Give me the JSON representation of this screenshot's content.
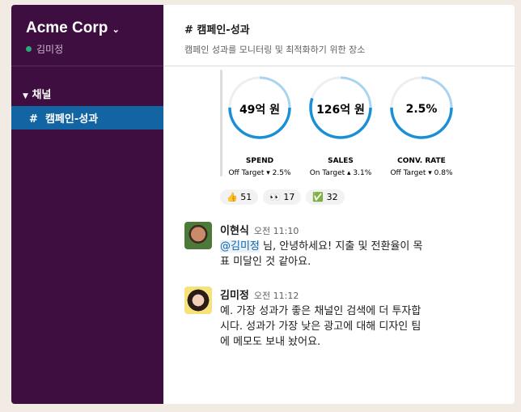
{
  "sidebar": {
    "workspace": "Acme Corp",
    "user": "김미정",
    "section": "채널",
    "channel": "캠페인-성과"
  },
  "header": {
    "title": "# 캠페인-성과",
    "description": "캠페인 성과를 모니터링 및 최적화하기 위한 장소"
  },
  "colors": {
    "accent": "#1a8fd6",
    "sidebar": "#3f0e40",
    "active": "#1264a3"
  },
  "gauges": [
    {
      "value": "49억 원",
      "label": "SPEND",
      "status": "Off Target ▾ 2.5%",
      "fill": 0.75
    },
    {
      "value": "126억 원",
      "label": "SALES",
      "status": "On Target ▴ 3.1%",
      "fill": 0.8
    },
    {
      "value": "2.5%",
      "label": "CONV. RATE",
      "status": "Off Target ▾ 0.8%",
      "fill": 0.75
    }
  ],
  "reactions": [
    {
      "emoji": "👍",
      "count": "51"
    },
    {
      "emoji": "👀",
      "count": "17"
    },
    {
      "emoji": "✅",
      "count": "32"
    }
  ],
  "messages": [
    {
      "author": "이현식",
      "time": "오전 11:10",
      "mention": "@김미정",
      "text": " 님, 안녕하세요! 지출 및 전환율이 목표 미달인 것 같아요."
    },
    {
      "author": "김미정",
      "time": "오전 11:12",
      "text": "예. 가장 성과가 좋은 채널인 검색에 더 투자합시다. 성과가 가장 낮은 광고에 대해 디자인 팀에 메모도 보내 놨어요."
    }
  ]
}
